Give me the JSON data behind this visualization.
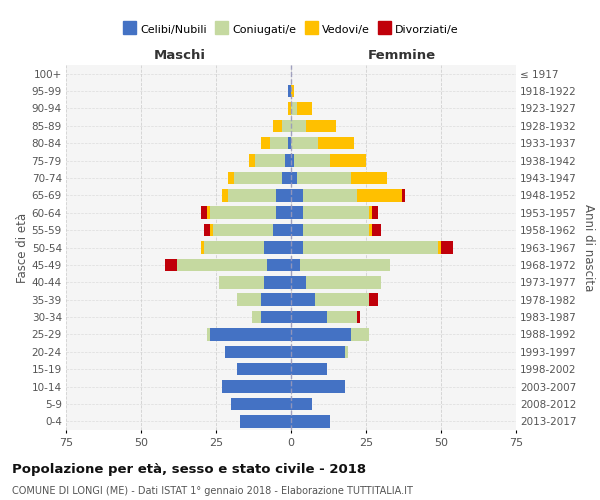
{
  "age_groups": [
    "0-4",
    "5-9",
    "10-14",
    "15-19",
    "20-24",
    "25-29",
    "30-34",
    "35-39",
    "40-44",
    "45-49",
    "50-54",
    "55-59",
    "60-64",
    "65-69",
    "70-74",
    "75-79",
    "80-84",
    "85-89",
    "90-94",
    "95-99",
    "100+"
  ],
  "birth_years": [
    "2013-2017",
    "2008-2012",
    "2003-2007",
    "1998-2002",
    "1993-1997",
    "1988-1992",
    "1983-1987",
    "1978-1982",
    "1973-1977",
    "1968-1972",
    "1963-1967",
    "1958-1962",
    "1953-1957",
    "1948-1952",
    "1943-1947",
    "1938-1942",
    "1933-1937",
    "1928-1932",
    "1923-1927",
    "1918-1922",
    "≤ 1917"
  ],
  "maschi": {
    "celibi": [
      17,
      20,
      23,
      18,
      22,
      27,
      10,
      10,
      9,
      8,
      9,
      6,
      5,
      5,
      3,
      2,
      1,
      0,
      0,
      1,
      0
    ],
    "coniugati": [
      0,
      0,
      0,
      0,
      0,
      1,
      3,
      8,
      15,
      30,
      20,
      20,
      22,
      16,
      16,
      10,
      6,
      3,
      0,
      0,
      0
    ],
    "vedovi": [
      0,
      0,
      0,
      0,
      0,
      0,
      0,
      0,
      0,
      0,
      1,
      1,
      1,
      2,
      2,
      2,
      3,
      3,
      1,
      0,
      0
    ],
    "divorziati": [
      0,
      0,
      0,
      0,
      0,
      0,
      0,
      0,
      0,
      4,
      0,
      2,
      2,
      0,
      0,
      0,
      0,
      0,
      0,
      0,
      0
    ]
  },
  "femmine": {
    "nubili": [
      13,
      7,
      18,
      12,
      18,
      20,
      12,
      8,
      5,
      3,
      4,
      4,
      4,
      4,
      2,
      1,
      0,
      0,
      0,
      0,
      0
    ],
    "coniugate": [
      0,
      0,
      0,
      0,
      1,
      6,
      10,
      18,
      25,
      30,
      45,
      22,
      22,
      18,
      18,
      12,
      9,
      5,
      2,
      0,
      0
    ],
    "vedove": [
      0,
      0,
      0,
      0,
      0,
      0,
      0,
      0,
      0,
      0,
      1,
      1,
      1,
      15,
      12,
      12,
      12,
      10,
      5,
      1,
      0
    ],
    "divorziate": [
      0,
      0,
      0,
      0,
      0,
      0,
      1,
      3,
      0,
      0,
      4,
      3,
      2,
      1,
      0,
      0,
      0,
      0,
      0,
      0,
      0
    ]
  },
  "colors": {
    "celibi": "#4472c4",
    "coniugati": "#c5d9a0",
    "vedovi": "#ffc000",
    "divorziati": "#c0000a"
  },
  "xlim": 75,
  "title": "Popolazione per età, sesso e stato civile - 2018",
  "subtitle": "COMUNE DI LONGI (ME) - Dati ISTAT 1° gennaio 2018 - Elaborazione TUTTITALIA.IT",
  "ylabel_left": "Fasce di età",
  "ylabel_right": "Anni di nascita",
  "xlabel_maschi": "Maschi",
  "xlabel_femmine": "Femmine",
  "legend_labels": [
    "Celibi/Nubili",
    "Coniugati/e",
    "Vedovi/e",
    "Divorziati/e"
  ]
}
